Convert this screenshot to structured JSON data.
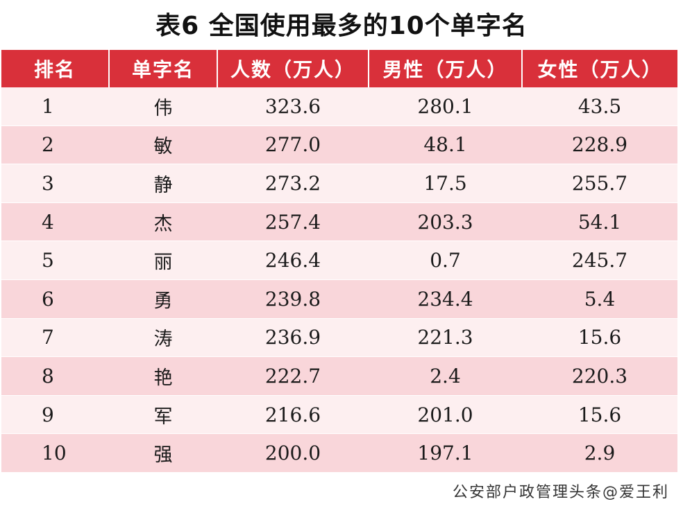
{
  "title": "表6  全国使用最多的10个单字名",
  "headers": [
    "排名",
    "单字名",
    "人数（万人）",
    "男性（万人）",
    "女性（万人）"
  ],
  "rows": [
    {
      "rank": "1",
      "name": "伟",
      "total": "323.6",
      "male": "280.1",
      "female": "43.5"
    },
    {
      "rank": "2",
      "name": "敏",
      "total": "277.0",
      "male": "48.1",
      "female": "228.9"
    },
    {
      "rank": "3",
      "name": "静",
      "total": "273.2",
      "male": "17.5",
      "female": "255.7"
    },
    {
      "rank": "4",
      "name": "杰",
      "total": "257.4",
      "male": "203.3",
      "female": "54.1"
    },
    {
      "rank": "5",
      "name": "丽",
      "total": "246.4",
      "male": "0.7",
      "female": "245.7"
    },
    {
      "rank": "6",
      "name": "勇",
      "total": "239.8",
      "male": "234.4",
      "female": "5.4"
    },
    {
      "rank": "7",
      "name": "涛",
      "total": "236.9",
      "male": "221.3",
      "female": "15.6"
    },
    {
      "rank": "8",
      "name": "艳",
      "total": "222.7",
      "male": "2.4",
      "female": "220.3"
    },
    {
      "rank": "9",
      "name": "军",
      "total": "216.6",
      "male": "201.0",
      "female": "15.6"
    },
    {
      "rank": "10",
      "name": "强",
      "total": "200.0",
      "male": "197.1",
      "female": "2.9"
    }
  ],
  "source": "公安部户政管理头条@爱王利",
  "colors": {
    "header_bg": "#d9303a",
    "row_light": "#fdeff0",
    "row_dark": "#f9d6da"
  }
}
